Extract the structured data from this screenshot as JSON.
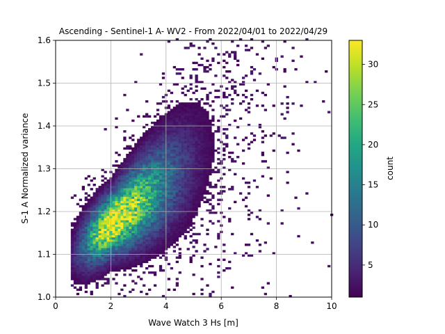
{
  "chart_data": {
    "type": "heatmap",
    "title": "Ascending - Sentinel-1 A- WV2 - From 2022/04/01 to 2022/04/29",
    "xlabel": "Wave Watch 3 Hs [m]",
    "ylabel": "S-1 A Normalized variance",
    "xlim": [
      0,
      10
    ],
    "ylim": [
      1.0,
      1.6
    ],
    "xticks": [
      "0",
      "2",
      "4",
      "6",
      "8",
      "10"
    ],
    "yticks": [
      "1.0",
      "1.1",
      "1.2",
      "1.3",
      "1.4",
      "1.5",
      "1.6"
    ],
    "grid": true,
    "colorbar": {
      "label": "count",
      "range": [
        1,
        33
      ],
      "ticks": [
        "5",
        "10",
        "15",
        "20",
        "25",
        "30"
      ],
      "colormap": "viridis"
    },
    "density_model": {
      "description": "2D histogram of collocated points; count density approximated by a bivariate peak",
      "peak_x": 2.0,
      "peak_y": 1.17,
      "peak_count": 33,
      "trend_slope": 0.05,
      "spread_x": 0.75,
      "spread_y": 0.045,
      "bin_x": 0.1,
      "bin_y": 0.005
    }
  }
}
